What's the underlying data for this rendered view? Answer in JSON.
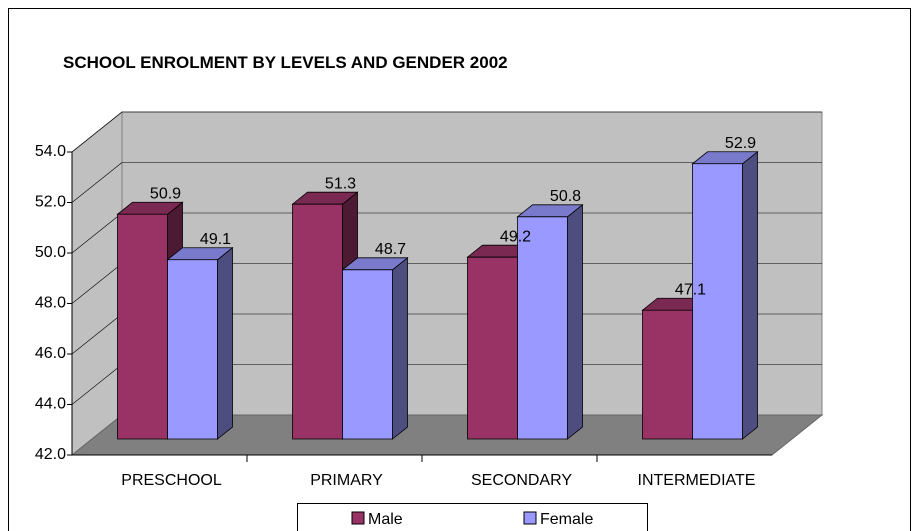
{
  "chart_data": {
    "type": "bar3d",
    "title": "SCHOOL ENROLMENT BY LEVELS AND GENDER 2002",
    "categories": [
      "PRESCHOOL",
      "PRIMARY",
      "SECONDARY",
      "INTERMEDIATE"
    ],
    "series": [
      {
        "name": "Male",
        "color": "#993366",
        "values": [
          50.9,
          51.3,
          49.2,
          47.1
        ]
      },
      {
        "name": "Female",
        "color": "#9999ff",
        "values": [
          49.1,
          48.7,
          50.8,
          52.9
        ]
      }
    ],
    "ylim": [
      42,
      54
    ],
    "yticks": [
      {
        "value": 42,
        "label": "42.0"
      },
      {
        "value": 44,
        "label": "44.0"
      },
      {
        "value": 46,
        "label": "46.0"
      },
      {
        "value": 48,
        "label": "48.0"
      },
      {
        "value": 50,
        "label": "50.0"
      },
      {
        "value": 52,
        "label": "52.0"
      },
      {
        "value": 54,
        "label": "54.0"
      }
    ],
    "grid": true,
    "legend": "bottom"
  }
}
